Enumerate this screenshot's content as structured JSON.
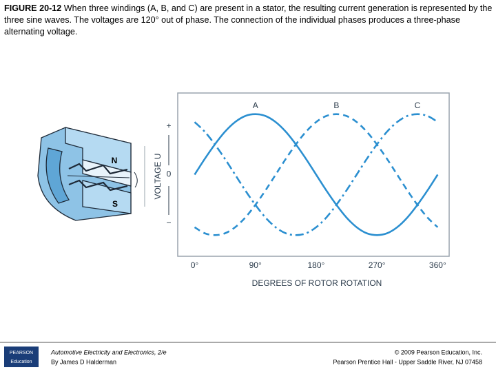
{
  "caption": {
    "label": "FIGURE 20-12",
    "text": "When three windings (A, B, and C) are present in a stator, the resulting current generation is represented by the three sine waves. The voltages are 120° out of phase. The connection of the individual phases produces a three-phase alternating voltage."
  },
  "stator": {
    "labels": [
      "N",
      "S"
    ]
  },
  "chart_data": {
    "type": "line",
    "x_label": "DEGREES OF ROTOR ROTATION",
    "y_label": "VOLTAGE U",
    "x": [
      0,
      15,
      30,
      45,
      60,
      75,
      90,
      105,
      120,
      135,
      150,
      165,
      180,
      195,
      210,
      225,
      240,
      255,
      270,
      285,
      300,
      315,
      330,
      345,
      360
    ],
    "series": [
      {
        "name": "A",
        "color": "#2b8fd0",
        "style": "solid",
        "values": [
          0,
          0.26,
          0.5,
          0.71,
          0.87,
          0.97,
          1,
          0.97,
          0.87,
          0.71,
          0.5,
          0.26,
          0,
          -0.26,
          -0.5,
          -0.71,
          -0.87,
          -0.97,
          -1,
          -0.97,
          -0.87,
          -0.71,
          -0.5,
          -0.26,
          0
        ]
      },
      {
        "name": "B",
        "color": "#2b8fd0",
        "style": "dashed",
        "values": [
          -0.87,
          -0.97,
          -1,
          -0.97,
          -0.87,
          -0.71,
          -0.5,
          -0.26,
          0,
          0.26,
          0.5,
          0.71,
          0.87,
          0.97,
          1,
          0.97,
          0.87,
          0.71,
          0.5,
          0.26,
          0,
          -0.26,
          -0.5,
          -0.71,
          -0.87
        ]
      },
      {
        "name": "C",
        "color": "#2b8fd0",
        "style": "dash-dot",
        "values": [
          0.87,
          0.71,
          0.5,
          0.26,
          0,
          -0.26,
          -0.5,
          -0.71,
          -0.87,
          -0.97,
          -1,
          -0.97,
          -0.87,
          -0.71,
          -0.5,
          -0.26,
          0,
          0.26,
          0.5,
          0.71,
          0.87,
          0.97,
          1,
          0.97,
          0.87
        ]
      }
    ],
    "xlim": [
      -25,
      377
    ],
    "ylim": [
      -1.35,
      1.35
    ],
    "xticks": [
      {
        "value": 0,
        "label": "0°"
      },
      {
        "value": 90,
        "label": "90°"
      },
      {
        "value": 180,
        "label": "180°"
      },
      {
        "value": 270,
        "label": "270°"
      },
      {
        "value": 360,
        "label": "360°"
      }
    ],
    "yticks": [
      {
        "value": 0.8,
        "label": "+"
      },
      0,
      {
        "value": -0.8,
        "label": "−"
      }
    ]
  },
  "footer": {
    "logo": [
      "PEARSON",
      "Education"
    ],
    "book": "Automotive Electricity and Electronics, 2/e",
    "author": "By James D Halderman",
    "copyright": "© 2009 Pearson Education, Inc.",
    "publisher": "Pearson Prentice Hall - Upper Saddle River, NJ 07458"
  }
}
